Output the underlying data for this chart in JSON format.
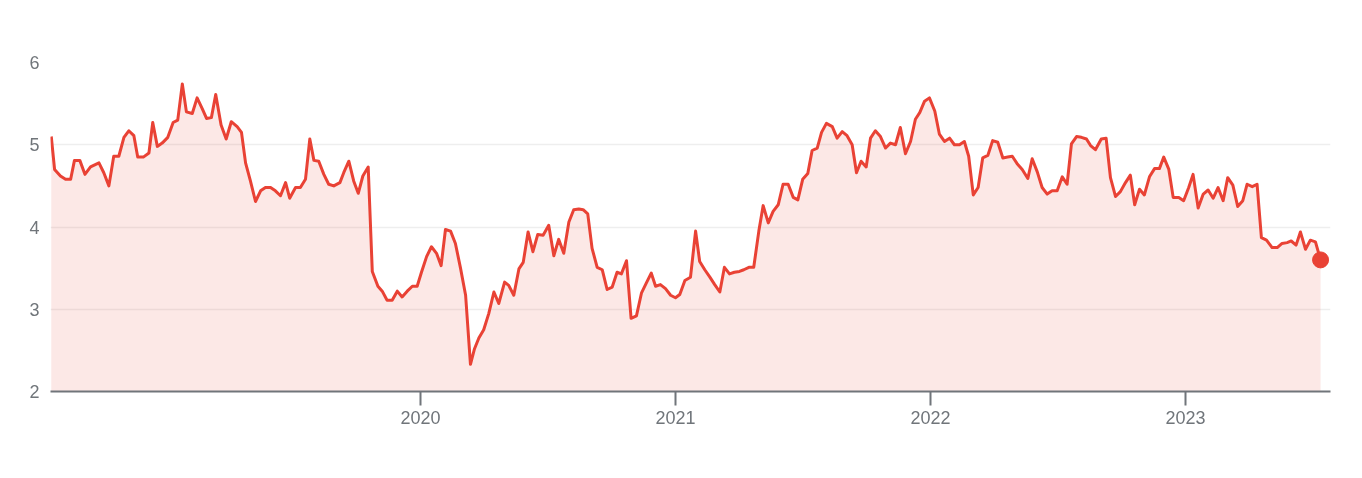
{
  "chart_data": {
    "type": "area",
    "xlim": [
      2018.549,
      2023.569
    ],
    "xticks": [
      2020,
      2021,
      2022,
      2023
    ],
    "ylim": [
      2,
      6
    ],
    "yticks": [
      2,
      3,
      4,
      5,
      6
    ],
    "grid": "y",
    "series": [
      {
        "color": "#e94235",
        "x": [
          2018.552,
          2018.565,
          2018.588,
          2018.608,
          2018.628,
          2018.643,
          2018.664,
          2018.684,
          2018.706,
          2018.739,
          2018.758,
          2018.778,
          2018.797,
          2018.817,
          2018.837,
          2018.856,
          2018.876,
          2018.891,
          2018.913,
          2018.935,
          2018.95,
          2018.968,
          2018.987,
          2019.009,
          2019.03,
          2019.048,
          2019.066,
          2019.082,
          2019.105,
          2019.124,
          2019.144,
          2019.161,
          2019.18,
          2019.197,
          2019.218,
          2019.238,
          2019.258,
          2019.281,
          2019.298,
          2019.314,
          2019.333,
          2019.353,
          2019.373,
          2019.392,
          2019.412,
          2019.431,
          2019.451,
          2019.471,
          2019.487,
          2019.51,
          2019.529,
          2019.549,
          2019.566,
          2019.582,
          2019.601,
          2019.621,
          2019.64,
          2019.66,
          2019.684,
          2019.699,
          2019.719,
          2019.738,
          2019.756,
          2019.774,
          2019.795,
          2019.811,
          2019.833,
          2019.85,
          2019.869,
          2019.889,
          2019.909,
          2019.928,
          2019.948,
          2019.968,
          2019.987,
          2020.003,
          2020.024,
          2020.043,
          2020.063,
          2020.081,
          2020.098,
          2020.118,
          2020.137,
          2020.157,
          2020.177,
          2020.196,
          2020.212,
          2020.229,
          2020.248,
          2020.268,
          2020.288,
          2020.307,
          2020.33,
          2020.346,
          2020.366,
          2020.386,
          2020.403,
          2020.422,
          2020.441,
          2020.46,
          2020.481,
          2020.503,
          2020.523,
          2020.542,
          2020.562,
          2020.582,
          2020.601,
          2020.621,
          2020.638,
          2020.656,
          2020.673,
          2020.693,
          2020.713,
          2020.732,
          2020.752,
          2020.771,
          2020.788,
          2020.808,
          2020.826,
          2020.847,
          2020.867,
          2020.886,
          2020.905,
          2020.922,
          2020.941,
          2020.961,
          2020.981,
          2021.0,
          2021.017,
          2021.037,
          2021.059,
          2021.079,
          2021.095,
          2021.115,
          2021.135,
          2021.154,
          2021.174,
          2021.192,
          2021.212,
          2021.231,
          2021.251,
          2021.268,
          2021.288,
          2021.307,
          2021.327,
          2021.344,
          2021.364,
          2021.383,
          2021.403,
          2021.422,
          2021.442,
          2021.462,
          2021.48,
          2021.499,
          2021.519,
          2021.536,
          2021.556,
          2021.573,
          2021.592,
          2021.615,
          2021.634,
          2021.654,
          2021.673,
          2021.693,
          2021.71,
          2021.728,
          2021.748,
          2021.765,
          2021.784,
          2021.804,
          2021.824,
          2021.843,
          2021.863,
          2021.882,
          2021.902,
          2021.922,
          2021.941,
          2021.958,
          2021.977,
          2021.996,
          2022.017,
          2022.035,
          2022.055,
          2022.075,
          2022.094,
          2022.114,
          2022.133,
          2022.15,
          2022.168,
          2022.187,
          2022.205,
          2022.225,
          2022.244,
          2022.264,
          2022.284,
          2022.303,
          2022.321,
          2022.34,
          2022.36,
          2022.382,
          2022.399,
          2022.419,
          2022.438,
          2022.458,
          2022.477,
          2022.497,
          2022.517,
          2022.536,
          2022.553,
          2022.573,
          2022.592,
          2022.612,
          2022.628,
          2022.647,
          2022.67,
          2022.689,
          2022.706,
          2022.726,
          2022.745,
          2022.765,
          2022.784,
          2022.801,
          2022.82,
          2022.839,
          2022.859,
          2022.879,
          2022.898,
          2022.915,
          2022.935,
          2022.952,
          2022.974,
          2022.993,
          2023.013,
          2023.03,
          2023.05,
          2023.07,
          2023.089,
          2023.109,
          2023.128,
          2023.148,
          2023.166,
          2023.186,
          2023.205,
          2023.225,
          2023.242,
          2023.262,
          2023.281,
          2023.298,
          2023.318,
          2023.34,
          2023.36,
          2023.379,
          2023.399,
          2023.415,
          2023.434,
          2023.451,
          2023.471,
          2023.49,
          2023.51,
          2023.53
        ],
        "values": [
          5.1,
          4.7,
          4.62,
          4.58,
          4.58,
          4.81,
          4.81,
          4.64,
          4.73,
          4.78,
          4.66,
          4.5,
          4.86,
          4.86,
          5.09,
          5.17,
          5.11,
          4.85,
          4.85,
          4.9,
          5.27,
          4.98,
          5.02,
          5.09,
          5.27,
          5.3,
          5.74,
          5.4,
          5.38,
          5.57,
          5.44,
          5.32,
          5.33,
          5.61,
          5.24,
          5.07,
          5.28,
          5.22,
          5.15,
          4.78,
          4.56,
          4.31,
          4.44,
          4.48,
          4.48,
          4.44,
          4.38,
          4.54,
          4.35,
          4.48,
          4.48,
          4.58,
          5.07,
          4.81,
          4.8,
          4.64,
          4.52,
          4.5,
          4.54,
          4.66,
          4.8,
          4.56,
          4.41,
          4.62,
          4.73,
          3.46,
          3.28,
          3.22,
          3.11,
          3.11,
          3.22,
          3.15,
          3.22,
          3.28,
          3.28,
          3.44,
          3.64,
          3.76,
          3.68,
          3.53,
          3.97,
          3.95,
          3.8,
          3.5,
          3.17,
          2.33,
          2.52,
          2.65,
          2.75,
          2.95,
          3.21,
          3.07,
          3.33,
          3.29,
          3.17,
          3.49,
          3.57,
          3.94,
          3.7,
          3.91,
          3.9,
          4.02,
          3.65,
          3.85,
          3.68,
          4.06,
          4.21,
          4.22,
          4.21,
          4.16,
          3.74,
          3.51,
          3.48,
          3.24,
          3.27,
          3.45,
          3.43,
          3.59,
          2.89,
          2.92,
          3.2,
          3.32,
          3.44,
          3.28,
          3.3,
          3.25,
          3.17,
          3.14,
          3.18,
          3.35,
          3.39,
          3.95,
          3.58,
          3.48,
          3.39,
          3.3,
          3.21,
          3.51,
          3.43,
          3.45,
          3.46,
          3.48,
          3.51,
          3.51,
          3.95,
          4.26,
          4.05,
          4.19,
          4.27,
          4.52,
          4.52,
          4.36,
          4.33,
          4.58,
          4.65,
          4.93,
          4.96,
          5.15,
          5.26,
          5.22,
          5.08,
          5.16,
          5.11,
          5.0,
          4.66,
          4.8,
          4.73,
          5.08,
          5.17,
          5.1,
          4.96,
          5.02,
          5.0,
          5.21,
          4.89,
          5.04,
          5.31,
          5.39,
          5.53,
          5.57,
          5.41,
          5.13,
          5.04,
          5.08,
          5.0,
          5.0,
          5.04,
          4.86,
          4.39,
          4.48,
          4.84,
          4.87,
          5.05,
          5.03,
          4.84,
          4.85,
          4.86,
          4.77,
          4.7,
          4.59,
          4.83,
          4.67,
          4.48,
          4.4,
          4.44,
          4.44,
          4.61,
          4.52,
          5.01,
          5.1,
          5.09,
          5.07,
          4.99,
          4.94,
          5.07,
          5.08,
          4.6,
          4.37,
          4.43,
          4.54,
          4.63,
          4.27,
          4.46,
          4.39,
          4.61,
          4.71,
          4.71,
          4.85,
          4.7,
          4.36,
          4.36,
          4.32,
          4.48,
          4.64,
          4.23,
          4.4,
          4.45,
          4.35,
          4.48,
          4.32,
          4.6,
          4.51,
          4.25,
          4.32,
          4.52,
          4.49,
          4.52,
          3.87,
          3.84,
          3.75,
          3.75,
          3.8,
          3.81,
          3.83,
          3.78,
          3.94,
          3.73,
          3.84,
          3.82,
          3.6
        ]
      },
      {
        "type": "scatter",
        "marker": "circle",
        "color": "#e94235",
        "x": [
          2023.53
        ],
        "values": [
          3.6
        ]
      }
    ]
  }
}
